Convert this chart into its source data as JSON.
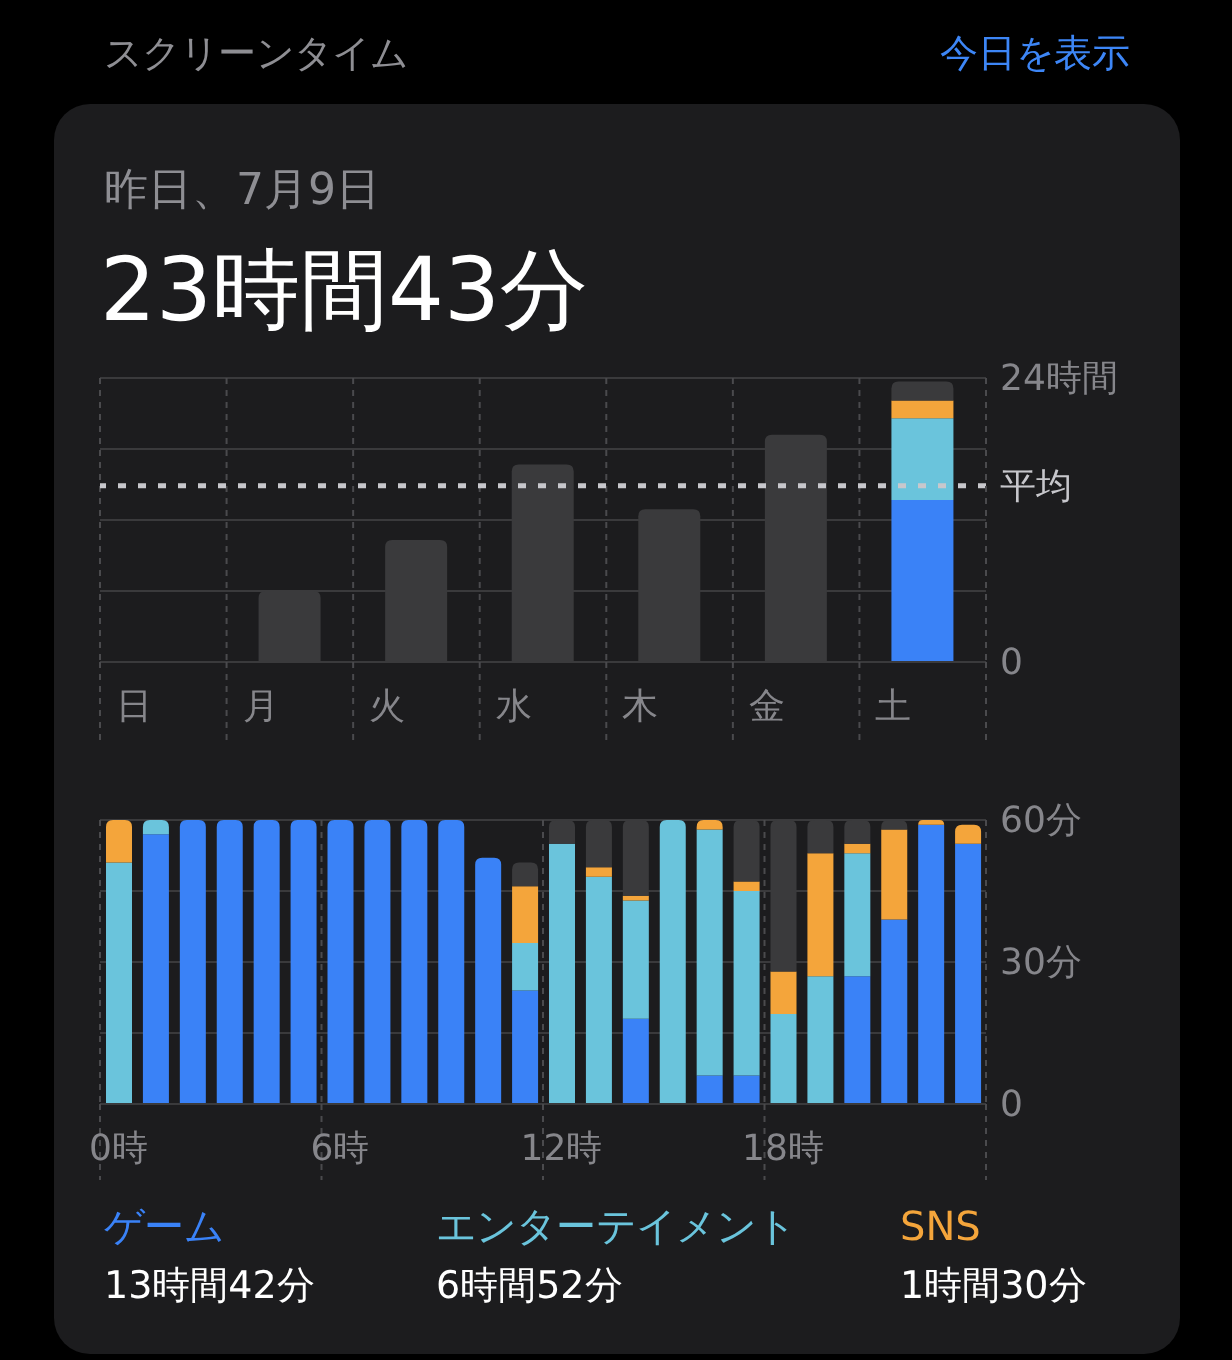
{
  "chart_data": [
    {
      "type": "bar",
      "title": "スクリーンタイム",
      "subtitle": "昨日、7月9日",
      "annotations": [
        "今日を表示",
        "23時間43分"
      ],
      "categories": [
        "日",
        "月",
        "火",
        "水",
        "木",
        "金",
        "土"
      ],
      "stacked": true,
      "series": [
        {
          "color": "#3a82f7",
          "values": [
            null,
            null,
            null,
            null,
            null,
            null,
            13.7
          ]
        },
        {
          "color": "#6ac4dc",
          "values": [
            null,
            null,
            null,
            null,
            null,
            null,
            6.9
          ]
        },
        {
          "color": "#f4a53b",
          "values": [
            null,
            null,
            null,
            null,
            null,
            null,
            1.5
          ]
        },
        {
          "color": "#3a3a3c",
          "values": [
            0,
            6.0,
            10.3,
            16.7,
            12.9,
            19.2,
            1.6
          ]
        }
      ],
      "ylim": [
        0,
        24
      ],
      "yticks": [
        0,
        {
          "value": 6,
          "label": null
        },
        {
          "value": 12,
          "label": null
        },
        {
          "value": 18,
          "label": null
        },
        {
          "value": 24,
          "label": "24時間"
        }
      ],
      "grid": true,
      "ref_lines": [
        {
          "axis": "y",
          "value": 14.9,
          "label": "平均",
          "color": "#c7c7cc",
          "line_style": "dotted"
        }
      ]
    },
    {
      "type": "bar",
      "categories": [
        "0時",
        null,
        null,
        null,
        null,
        null,
        "6時",
        null,
        null,
        null,
        null,
        null,
        "12時",
        null,
        null,
        null,
        null,
        null,
        "18時",
        null,
        null,
        null,
        null,
        null
      ],
      "stacked": true,
      "legend": "bottom",
      "annotations": [
        "13時間42分",
        "6時間52分",
        "1時間30分"
      ],
      "series": [
        {
          "name": "ゲーム",
          "color": "#3a82f7",
          "values": [
            0,
            57,
            60,
            60,
            60,
            60,
            60,
            60,
            60,
            60,
            52,
            24,
            0,
            0,
            18,
            0,
            6,
            6,
            0,
            0,
            27,
            39,
            59,
            55
          ]
        },
        {
          "name": "エンターテイメント",
          "color": "#6ac4dc",
          "values": [
            51,
            3,
            0,
            0,
            0,
            0,
            0,
            0,
            0,
            0,
            0,
            10,
            55,
            48,
            25,
            60,
            52,
            39,
            19,
            27,
            26,
            0,
            0,
            0
          ]
        },
        {
          "name": "SNS",
          "color": "#f4a53b",
          "values": [
            9,
            0,
            0,
            0,
            0,
            0,
            0,
            0,
            0,
            0,
            0,
            12,
            0,
            2,
            1,
            0,
            2,
            2,
            9,
            26,
            2,
            19,
            1,
            4
          ]
        },
        {
          "color": "#3a3a3c",
          "values": [
            0,
            0,
            0,
            0,
            0,
            0,
            0,
            0,
            0,
            0,
            0,
            5,
            5,
            10,
            16,
            0,
            0,
            13,
            32,
            7,
            5,
            2,
            0,
            0
          ]
        }
      ],
      "ylim": [
        0,
        60
      ],
      "yticks": [
        0,
        {
          "value": 15,
          "label": null
        },
        {
          "value": 30,
          "label": "30分"
        },
        {
          "value": 45,
          "label": null
        },
        {
          "value": 60,
          "label": "60分"
        }
      ],
      "grid": true
    }
  ]
}
